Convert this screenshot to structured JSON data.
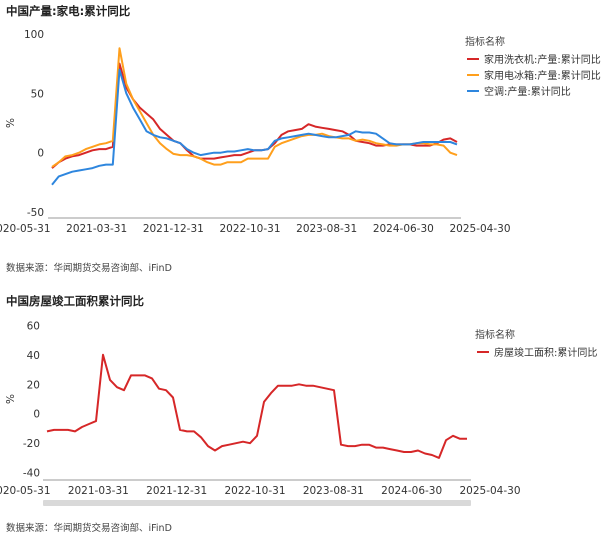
{
  "chart_data": [
    {
      "type": "line",
      "title": "中国产量:家电:累计同比",
      "ylabel": "%",
      "ylim": [
        -55,
        105
      ],
      "y_ticks": [
        100,
        50,
        0,
        -50
      ],
      "x_tick_labels": [
        "2020-05-31",
        "2021-03-31",
        "2021-12-31",
        "2022-10-31",
        "2023-08-31",
        "2024-06-30",
        "2025-04-30"
      ],
      "x": [
        "2020-05",
        "2020-06",
        "2020-07",
        "2020-08",
        "2020-09",
        "2020-10",
        "2020-11",
        "2020-12",
        "2021-01",
        "2021-02",
        "2021-03",
        "2021-04",
        "2021-05",
        "2021-06",
        "2021-07",
        "2021-08",
        "2021-09",
        "2021-10",
        "2021-11",
        "2021-12",
        "2022-01",
        "2022-02",
        "2022-03",
        "2022-04",
        "2022-05",
        "2022-06",
        "2022-07",
        "2022-08",
        "2022-09",
        "2022-10",
        "2022-11",
        "2022-12",
        "2023-01",
        "2023-02",
        "2023-03",
        "2023-04",
        "2023-05",
        "2023-06",
        "2023-07",
        "2023-08",
        "2023-09",
        "2023-10",
        "2023-11",
        "2023-12",
        "2024-01",
        "2024-02",
        "2024-03",
        "2024-04",
        "2024-05",
        "2024-06",
        "2024-07",
        "2024-08",
        "2024-09",
        "2024-10",
        "2024-11",
        "2024-12",
        "2025-01",
        "2025-02",
        "2025-03",
        "2025-04",
        "2025-05"
      ],
      "legend_title": "指标名称",
      "legend_position": "right",
      "grid": false,
      "series": [
        {
          "name": "家用洗衣机:产量:累计同比",
          "color": "#d62728",
          "values": [
            -13,
            -8,
            -5,
            -3,
            -2,
            0,
            2,
            3,
            3,
            5,
            75,
            55,
            45,
            38,
            33,
            28,
            20,
            15,
            10,
            8,
            2,
            -3,
            -5,
            -5,
            -5,
            -4,
            -3,
            -2,
            -2,
            0,
            2,
            2,
            3,
            8,
            15,
            18,
            19,
            20,
            24,
            22,
            21,
            20,
            19,
            18,
            15,
            10,
            9,
            8,
            6,
            6,
            7,
            7,
            7,
            7,
            6,
            6,
            6,
            8,
            11,
            12,
            9
          ]
        },
        {
          "name": "家用电冰箱:产量:累计同比",
          "color": "#ff9f1c",
          "values": [
            -12,
            -8,
            -3,
            -2,
            0,
            3,
            5,
            7,
            8,
            10,
            88,
            58,
            45,
            35,
            25,
            15,
            8,
            3,
            -1,
            -2,
            -2,
            -3,
            -5,
            -8,
            -10,
            -10,
            -8,
            -8,
            -8,
            -5,
            -5,
            -5,
            -5,
            5,
            8,
            10,
            12,
            14,
            15,
            15,
            16,
            14,
            13,
            12,
            12,
            10,
            11,
            10,
            8,
            7,
            6,
            6,
            7,
            7,
            8,
            8,
            7,
            7,
            6,
            0,
            -2
          ]
        },
        {
          "name": "空调:产量:累计同比",
          "color": "#2e86de",
          "values": [
            -27,
            -20,
            -18,
            -16,
            -15,
            -14,
            -13,
            -11,
            -10,
            -10,
            70,
            50,
            38,
            28,
            18,
            15,
            13,
            12,
            10,
            8,
            3,
            0,
            -2,
            -1,
            0,
            0,
            1,
            1,
            2,
            3,
            2,
            2,
            3,
            10,
            12,
            13,
            14,
            15,
            16,
            15,
            14,
            13,
            13,
            14,
            15,
            18,
            17,
            17,
            16,
            12,
            8,
            7,
            7,
            7,
            8,
            9,
            9,
            9,
            9,
            9,
            7
          ]
        }
      ]
    },
    {
      "type": "line",
      "title": "中国房屋竣工面积累计同比",
      "ylabel": "%",
      "ylim": [
        -45,
        65
      ],
      "y_ticks": [
        60,
        40,
        20,
        0,
        -20,
        -40
      ],
      "x_tick_labels": [
        "2020-05-31",
        "2021-03-31",
        "2021-12-31",
        "2022-10-31",
        "2023-08-31",
        "2024-06-30",
        "2025-04-30"
      ],
      "x": [
        "2020-05",
        "2020-06",
        "2020-07",
        "2020-08",
        "2020-09",
        "2020-10",
        "2020-11",
        "2020-12",
        "2021-01",
        "2021-02",
        "2021-03",
        "2021-04",
        "2021-05",
        "2021-06",
        "2021-07",
        "2021-08",
        "2021-09",
        "2021-10",
        "2021-11",
        "2021-12",
        "2022-01",
        "2022-02",
        "2022-03",
        "2022-04",
        "2022-05",
        "2022-06",
        "2022-07",
        "2022-08",
        "2022-09",
        "2022-10",
        "2022-11",
        "2022-12",
        "2023-01",
        "2023-02",
        "2023-03",
        "2023-04",
        "2023-05",
        "2023-06",
        "2023-07",
        "2023-08",
        "2023-09",
        "2023-10",
        "2023-11",
        "2023-12",
        "2024-01",
        "2024-02",
        "2024-03",
        "2024-04",
        "2024-05",
        "2024-06",
        "2024-07",
        "2024-08",
        "2024-09",
        "2024-10",
        "2024-11",
        "2024-12",
        "2025-01",
        "2025-02",
        "2025-03",
        "2025-04",
        "2025-05"
      ],
      "legend_title": "指标名称",
      "legend_position": "right",
      "grid": false,
      "has_scrollbar": true,
      "series": [
        {
          "name": "房屋竣工面积:累计同比",
          "color": "#d62728",
          "values": [
            -12,
            -11,
            -11,
            -11,
            -12,
            -9,
            -7,
            -5,
            40,
            23,
            18,
            16,
            26,
            26,
            26,
            24,
            17,
            16,
            11,
            -11,
            -12,
            -12,
            -16,
            -22,
            -25,
            -22,
            -21,
            -20,
            -19,
            -20,
            -15,
            8,
            14,
            19,
            19,
            19,
            20,
            19,
            19,
            18,
            17,
            16,
            -21,
            -22,
            -22,
            -21,
            -21,
            -23,
            -23,
            -24,
            -25,
            -26,
            -26,
            -25,
            -27,
            -28,
            -30,
            -18,
            -15,
            -17,
            -17
          ]
        }
      ]
    }
  ],
  "legend_title": "指标名称",
  "source_note": "数据来源：华闻期货交易咨询部、iFinD"
}
